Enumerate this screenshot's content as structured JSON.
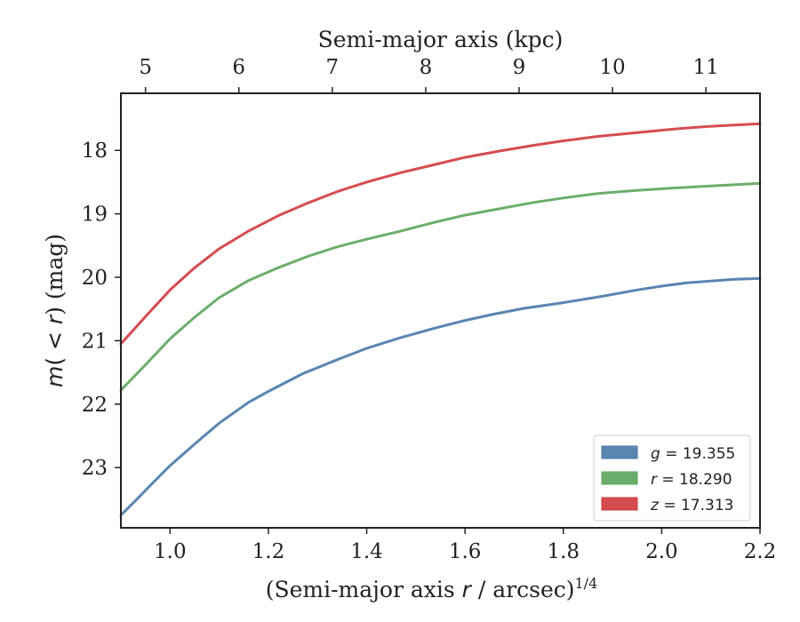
{
  "chart_data": {
    "type": "line",
    "title": "",
    "xlabel": "(Semi-major axis r / arcsec)",
    "xlabel_italic": "r",
    "xlabel_parts": [
      "(Semi-major axis ",
      "r",
      " / arcsec)"
    ],
    "xlabel_sup": "1/4",
    "ylabel_parts": [
      "m",
      "( < ",
      "r",
      ") (mag)"
    ],
    "top_xlabel": "Semi-major axis (kpc)",
    "xlim": [
      0.9,
      2.2
    ],
    "ylim": [
      23.95,
      17.1
    ],
    "x_ticks": [
      1.0,
      1.2,
      1.4,
      1.6,
      1.8,
      2.0,
      2.2
    ],
    "x_tick_labels": [
      "1.0",
      "1.2",
      "1.4",
      "1.6",
      "1.8",
      "2.0",
      "2.2"
    ],
    "y_ticks": [
      18,
      19,
      20,
      21,
      22,
      23
    ],
    "y_tick_labels": [
      "18",
      "19",
      "20",
      "21",
      "22",
      "23"
    ],
    "top_ticks": [
      {
        "label": "5",
        "x": 0.95
      },
      {
        "label": "6",
        "x": 1.14
      },
      {
        "label": "7",
        "x": 1.33
      },
      {
        "label": "8",
        "x": 1.52
      },
      {
        "label": "9",
        "x": 1.71
      },
      {
        "label": "10",
        "x": 1.9
      },
      {
        "label": "11",
        "x": 2.09
      }
    ],
    "grid": false,
    "legend_position": "bottom-right",
    "series": [
      {
        "name": "g = 19.355",
        "legend_var": "g",
        "legend_value": "= 19.355",
        "color": "#4878a8",
        "x": [
          0.9,
          0.93,
          0.96,
          1.0,
          1.05,
          1.1,
          1.16,
          1.2,
          1.27,
          1.34,
          1.4,
          1.47,
          1.54,
          1.6,
          1.66,
          1.72,
          1.8,
          1.88,
          1.95,
          2.0,
          2.05,
          2.1,
          2.15,
          2.2
        ],
        "y": [
          23.75,
          23.52,
          23.28,
          22.97,
          22.63,
          22.3,
          21.97,
          21.8,
          21.52,
          21.3,
          21.12,
          20.95,
          20.8,
          20.68,
          20.58,
          20.49,
          20.4,
          20.3,
          20.2,
          20.14,
          20.09,
          20.06,
          20.03,
          20.02
        ]
      },
      {
        "name": "r = 18.290",
        "legend_var": "r",
        "legend_value": "= 18.290",
        "color": "#5ba55b",
        "x": [
          0.9,
          0.95,
          1.0,
          1.05,
          1.1,
          1.16,
          1.22,
          1.28,
          1.34,
          1.4,
          1.47,
          1.54,
          1.6,
          1.67,
          1.74,
          1.8,
          1.87,
          1.95,
          2.03,
          2.1,
          2.2
        ],
        "y": [
          21.78,
          21.38,
          20.97,
          20.63,
          20.32,
          20.05,
          19.85,
          19.67,
          19.52,
          19.4,
          19.27,
          19.13,
          19.02,
          18.92,
          18.82,
          18.75,
          18.68,
          18.63,
          18.59,
          18.56,
          18.52
        ]
      },
      {
        "name": "z = 17.313",
        "legend_var": "z",
        "legend_value": "= 17.313",
        "color": "#d0393c",
        "x": [
          0.9,
          0.95,
          1.0,
          1.05,
          1.1,
          1.16,
          1.22,
          1.28,
          1.34,
          1.4,
          1.47,
          1.54,
          1.6,
          1.67,
          1.74,
          1.8,
          1.87,
          1.95,
          2.03,
          2.1,
          2.2
        ],
        "y": [
          21.05,
          20.62,
          20.2,
          19.85,
          19.55,
          19.27,
          19.03,
          18.83,
          18.65,
          18.5,
          18.35,
          18.22,
          18.11,
          18.01,
          17.92,
          17.85,
          17.78,
          17.72,
          17.66,
          17.62,
          17.58
        ]
      }
    ]
  }
}
